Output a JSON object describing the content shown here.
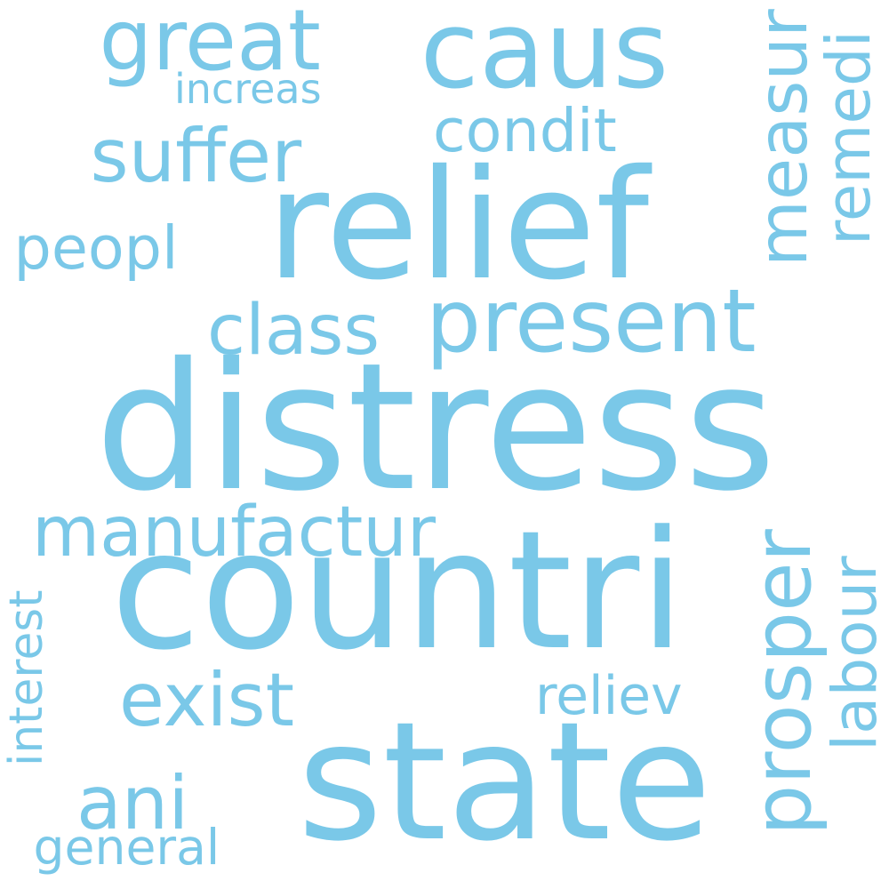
{
  "cloud": {
    "color": "#7ac8e8",
    "words": [
      {
        "id": "distress",
        "text": "distress"
      },
      {
        "id": "countri",
        "text": "countri"
      },
      {
        "id": "state",
        "text": "state"
      },
      {
        "id": "relief",
        "text": "relief"
      },
      {
        "id": "caus",
        "text": "caus"
      },
      {
        "id": "present",
        "text": "present"
      },
      {
        "id": "suffer",
        "text": "suffer"
      },
      {
        "id": "great",
        "text": "great"
      },
      {
        "id": "manufactur",
        "text": "manufactur"
      },
      {
        "id": "exist",
        "text": "exist"
      },
      {
        "id": "class",
        "text": "class"
      },
      {
        "id": "ani",
        "text": "ani"
      },
      {
        "id": "labour",
        "text": "labour"
      },
      {
        "id": "prosper",
        "text": "prosper"
      },
      {
        "id": "measur",
        "text": "measur"
      },
      {
        "id": "remedi",
        "text": "remedi"
      },
      {
        "id": "condit",
        "text": "condit"
      },
      {
        "id": "peopl",
        "text": "peopl"
      },
      {
        "id": "reliev",
        "text": "reliev"
      },
      {
        "id": "increas",
        "text": "increas"
      },
      {
        "id": "general",
        "text": "general"
      },
      {
        "id": "interest",
        "text": "interest"
      }
    ]
  }
}
